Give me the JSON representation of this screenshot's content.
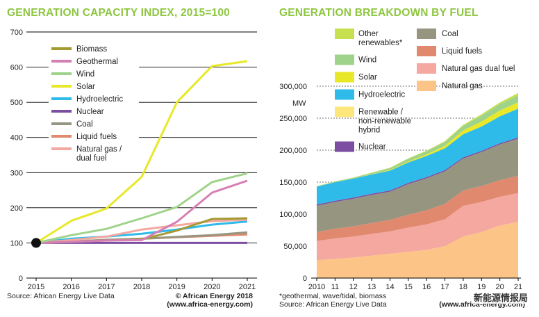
{
  "left_title": "GENERATION CAPACITY INDEX, 2015=100",
  "right_title": "GENERATION BREAKDOWN BY FUEL",
  "left_source": "Source: African Energy Live Data",
  "left_copyright": "© African Energy 2018",
  "left_url": "(www.africa-energy.com)",
  "right_note": "*geothermal, wave/tidal, biomass",
  "right_source": "Source: African Energy Live Data",
  "right_url": "(www.africa-energy.com)",
  "watermark": "新能源情报局",
  "colors": {
    "biomass": "#a39a32",
    "geothermal": "#d77fb5",
    "wind": "#9fd38b",
    "solar": "#e8e829",
    "hydro": "#2ebbea",
    "nuclear": "#7b4ea1",
    "coal": "#969680",
    "liquid": "#e0896f",
    "gas_dual": "#f4a8a0",
    "gas": "#fcc587",
    "other_renew": "#c6e04f",
    "hybrid": "#fde67a"
  },
  "chart_data": [
    {
      "type": "line",
      "title": "GENERATION CAPACITY INDEX, 2015=100",
      "x": [
        2015,
        2016,
        2017,
        2018,
        2019,
        2020,
        2021
      ],
      "ylim": [
        0,
        700
      ],
      "yticks": [
        0,
        100,
        200,
        300,
        400,
        500,
        600,
        700
      ],
      "series": [
        {
          "key": "biomass",
          "name": "Biomass",
          "values": [
            100,
            103,
            107,
            110,
            135,
            168,
            170
          ]
        },
        {
          "key": "geothermal",
          "name": "Geothermal",
          "values": [
            100,
            103,
            107,
            108,
            160,
            243,
            277
          ]
        },
        {
          "key": "wind",
          "name": "Wind",
          "values": [
            100,
            122,
            140,
            170,
            202,
            273,
            298
          ]
        },
        {
          "key": "solar",
          "name": "Solar",
          "values": [
            100,
            163,
            198,
            288,
            500,
            603,
            617
          ]
        },
        {
          "key": "hydro",
          "name": "Hydroelectric",
          "values": [
            100,
            112,
            118,
            126,
            138,
            152,
            161
          ]
        },
        {
          "key": "nuclear",
          "name": "Nuclear",
          "values": [
            100,
            100,
            100,
            100,
            100,
            100,
            100
          ]
        },
        {
          "key": "coal",
          "name": "Coal",
          "values": [
            100,
            104,
            109,
            112,
            117,
            122,
            130
          ]
        },
        {
          "key": "liquid",
          "name": "Liquid fuels",
          "values": [
            100,
            104,
            108,
            112,
            116,
            120,
            124
          ]
        },
        {
          "key": "gas_dual",
          "name": "Natural gas / dual fuel",
          "label_lines": [
            "Natural gas /",
            "dual fuel"
          ],
          "values": [
            100,
            108,
            118,
            138,
            150,
            162,
            166
          ]
        }
      ]
    },
    {
      "type": "area",
      "title": "GENERATION BREAKDOWN BY FUEL",
      "ylabel": "MW",
      "x_labels": [
        "2010",
        "11",
        "12",
        "13",
        "14",
        "15",
        "16",
        "17",
        "18",
        "19",
        "20",
        "21"
      ],
      "ylim": [
        0,
        300000
      ],
      "yticks": [
        0,
        50000,
        100000,
        150000,
        200000,
        250000,
        300000
      ],
      "ytick_labels": [
        "0",
        "50,000",
        "100,000",
        "150,000",
        "200,000",
        "250,000",
        "300,000"
      ],
      "series": [
        {
          "key": "gas",
          "name": "Natural gas",
          "values": [
            28000,
            30000,
            32000,
            35000,
            38000,
            41000,
            44000,
            50000,
            65000,
            72000,
            82000,
            88000
          ]
        },
        {
          "key": "gas_dual",
          "name": "Natural gas dual fuel",
          "values": [
            30000,
            32000,
            33000,
            34000,
            35000,
            38000,
            40000,
            42000,
            48000,
            47000,
            45000,
            45000
          ]
        },
        {
          "key": "liquid",
          "name": "Liquid fuels",
          "values": [
            14000,
            15000,
            16000,
            17000,
            18000,
            20000,
            22000,
            24000,
            24000,
            25000,
            26000,
            27000
          ]
        },
        {
          "key": "coal",
          "name": "Coal",
          "values": [
            41000,
            42000,
            43000,
            44000,
            44000,
            48000,
            50000,
            51000,
            50000,
            53000,
            56000,
            58000
          ]
        },
        {
          "key": "nuclear",
          "name": "Nuclear",
          "values": [
            1900,
            1900,
            1900,
            1900,
            1900,
            1900,
            1900,
            1900,
            1900,
            1900,
            1900,
            1900
          ]
        },
        {
          "key": "hybrid",
          "name": "Renewable / non-renewable hybrid",
          "label_lines": [
            "Renewable /",
            "non-renewable",
            "hybrid"
          ],
          "values": [
            0,
            0,
            0,
            0,
            0,
            0,
            0,
            0,
            0,
            0,
            0,
            0
          ]
        },
        {
          "key": "hydro",
          "name": "Hydroelectric",
          "values": [
            28000,
            29000,
            29500,
            30000,
            31000,
            32000,
            33000,
            34000,
            36000,
            38000,
            42000,
            45000
          ]
        },
        {
          "key": "solar",
          "name": "Solar",
          "values": [
            0,
            0,
            0,
            500,
            1000,
            1500,
            2500,
            4000,
            6000,
            8000,
            9000,
            10000
          ]
        },
        {
          "key": "wind",
          "name": "Wind",
          "values": [
            500,
            800,
            1200,
            2000,
            3000,
            4000,
            5000,
            6000,
            7000,
            9000,
            10000,
            11000
          ]
        },
        {
          "key": "other_renew",
          "name": "Other renewables*",
          "label_lines": [
            "Other",
            "renewables*"
          ],
          "values": [
            500,
            500,
            600,
            600,
            700,
            800,
            900,
            1200,
            1800,
            2200,
            2700,
            3500
          ]
        }
      ]
    }
  ]
}
